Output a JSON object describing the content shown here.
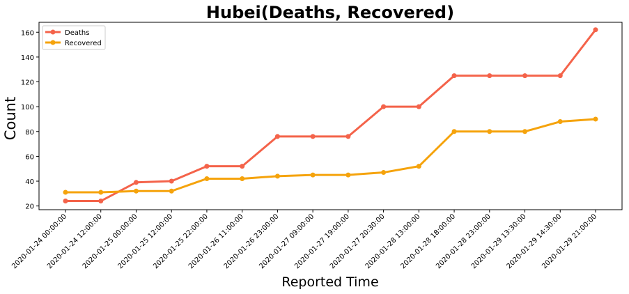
{
  "chart_data": {
    "type": "line",
    "title": "Hubei(Deaths, Recovered)",
    "xlabel": "Reported Time",
    "ylabel": "Count",
    "categories": [
      "2020-01-24 00:00:00",
      "2020-01-24 12:00:00",
      "2020-01-25 00:00:00",
      "2020-01-25 12:00:00",
      "2020-01-25 22:00:00",
      "2020-01-26 11:00:00",
      "2020-01-26 23:00:00",
      "2020-01-27 09:00:00",
      "2020-01-27 19:00:00",
      "2020-01-27 20:30:00",
      "2020-01-28 13:00:00",
      "2020-01-28 18:00:00",
      "2020-01-28 23:00:00",
      "2020-01-29 13:30:00",
      "2020-01-29 14:30:00",
      "2020-01-29 21:00:00"
    ],
    "yticks": [
      20,
      40,
      60,
      80,
      100,
      120,
      140,
      160
    ],
    "ylim": [
      17,
      168
    ],
    "grid": false,
    "legend": "top-left",
    "series": [
      {
        "name": "Deaths",
        "color": "#f4634a",
        "values": [
          24,
          24,
          39,
          40,
          52,
          52,
          76,
          76,
          76,
          100,
          100,
          125,
          125,
          125,
          125,
          162
        ]
      },
      {
        "name": "Recovered",
        "color": "#f5a30c",
        "values": [
          31,
          31,
          32,
          32,
          42,
          42,
          44,
          45,
          45,
          47,
          52,
          80,
          80,
          80,
          88,
          90
        ]
      }
    ]
  }
}
